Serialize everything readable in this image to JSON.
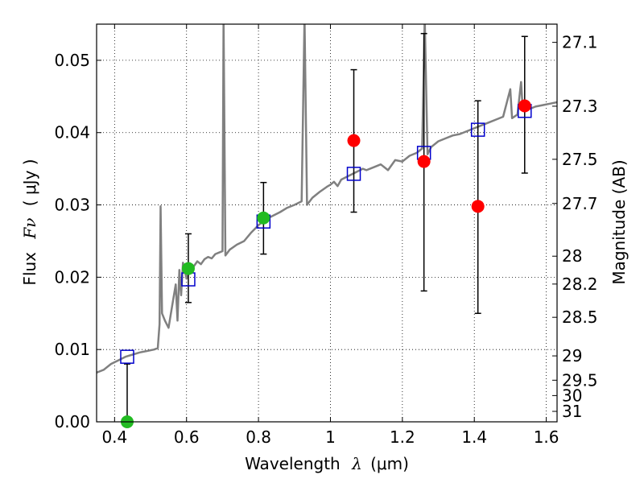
{
  "chart_data": {
    "type": "scatter",
    "xlabel_text": "Wavelength",
    "xlabel_symbol": "λ",
    "xlabel_unit": "(μm)",
    "ylabel_text": "Flux",
    "ylabel_symbol": "Fν",
    "ylabel_unit": "( μJy )",
    "y2label": "Magnitude (AB)",
    "xlim": [
      0.35,
      1.63
    ],
    "ylim": [
      0.0,
      0.055
    ],
    "x_ticks": [
      0.4,
      0.6,
      0.8,
      1.0,
      1.2,
      1.4,
      1.6
    ],
    "x_tick_labels": [
      "0.4",
      "0.6",
      "0.8",
      "1",
      "1.2",
      "1.4",
      "1.6"
    ],
    "y_ticks": [
      0.0,
      0.01,
      0.02,
      0.03,
      0.04,
      0.05
    ],
    "y_tick_labels": [
      "0.00",
      "0.01",
      "0.02",
      "0.03",
      "0.04",
      "0.05"
    ],
    "mag_ticks": [
      "27.1",
      "27.3",
      "27.5",
      "27.7",
      "28",
      "28.2",
      "28.5",
      "29",
      "29.5",
      "30",
      "31"
    ],
    "grid": true,
    "colors": {
      "model": "#808080",
      "detection": "#22bb22",
      "measurement": "#ff0000",
      "model_photometry": "#0000cc",
      "errorbar": "#000000"
    },
    "series": [
      {
        "name": "model_spectrum",
        "type": "line",
        "points": [
          [
            0.35,
            0.0068
          ],
          [
            0.37,
            0.0072
          ],
          [
            0.39,
            0.008
          ],
          [
            0.41,
            0.0085
          ],
          [
            0.43,
            0.009
          ],
          [
            0.45,
            0.0093
          ],
          [
            0.47,
            0.0096
          ],
          [
            0.49,
            0.0098
          ],
          [
            0.51,
            0.01
          ],
          [
            0.52,
            0.0102
          ],
          [
            0.525,
            0.0135
          ],
          [
            0.528,
            0.0298
          ],
          [
            0.532,
            0.015
          ],
          [
            0.54,
            0.014
          ],
          [
            0.55,
            0.013
          ],
          [
            0.56,
            0.016
          ],
          [
            0.57,
            0.019
          ],
          [
            0.575,
            0.014
          ],
          [
            0.58,
            0.021
          ],
          [
            0.585,
            0.0175
          ],
          [
            0.59,
            0.022
          ],
          [
            0.6,
            0.0198
          ],
          [
            0.61,
            0.021
          ],
          [
            0.62,
            0.0215
          ],
          [
            0.63,
            0.0222
          ],
          [
            0.64,
            0.0218
          ],
          [
            0.65,
            0.0225
          ],
          [
            0.66,
            0.0228
          ],
          [
            0.67,
            0.0226
          ],
          [
            0.68,
            0.0232
          ],
          [
            0.69,
            0.0234
          ],
          [
            0.7,
            0.0236
          ],
          [
            0.703,
            0.056
          ],
          [
            0.708,
            0.023
          ],
          [
            0.72,
            0.0238
          ],
          [
            0.74,
            0.0245
          ],
          [
            0.76,
            0.025
          ],
          [
            0.78,
            0.0262
          ],
          [
            0.8,
            0.0272
          ],
          [
            0.82,
            0.028
          ],
          [
            0.84,
            0.0285
          ],
          [
            0.86,
            0.029
          ],
          [
            0.88,
            0.0296
          ],
          [
            0.9,
            0.03
          ],
          [
            0.92,
            0.0305
          ],
          [
            0.928,
            0.056
          ],
          [
            0.935,
            0.03
          ],
          [
            0.95,
            0.031
          ],
          [
            0.97,
            0.0318
          ],
          [
            0.99,
            0.0325
          ],
          [
            1.0,
            0.0328
          ],
          [
            1.01,
            0.0332
          ],
          [
            1.02,
            0.0326
          ],
          [
            1.03,
            0.0335
          ],
          [
            1.05,
            0.034
          ],
          [
            1.07,
            0.0345
          ],
          [
            1.09,
            0.035
          ],
          [
            1.1,
            0.0348
          ],
          [
            1.12,
            0.0352
          ],
          [
            1.14,
            0.0356
          ],
          [
            1.16,
            0.0348
          ],
          [
            1.18,
            0.0362
          ],
          [
            1.2,
            0.036
          ],
          [
            1.22,
            0.0368
          ],
          [
            1.24,
            0.0372
          ],
          [
            1.255,
            0.0378
          ],
          [
            1.262,
            0.056
          ],
          [
            1.27,
            0.037
          ],
          [
            1.28,
            0.038
          ],
          [
            1.3,
            0.0388
          ],
          [
            1.32,
            0.0392
          ],
          [
            1.34,
            0.0396
          ],
          [
            1.36,
            0.0398
          ],
          [
            1.38,
            0.0402
          ],
          [
            1.4,
            0.0406
          ],
          [
            1.42,
            0.041
          ],
          [
            1.44,
            0.0414
          ],
          [
            1.46,
            0.0418
          ],
          [
            1.48,
            0.0422
          ],
          [
            1.5,
            0.046
          ],
          [
            1.505,
            0.042
          ],
          [
            1.52,
            0.0425
          ],
          [
            1.53,
            0.047
          ],
          [
            1.535,
            0.043
          ],
          [
            1.55,
            0.0432
          ],
          [
            1.57,
            0.0436
          ],
          [
            1.59,
            0.0438
          ],
          [
            1.61,
            0.044
          ],
          [
            1.63,
            0.0442
          ]
        ]
      },
      {
        "name": "detections",
        "type": "scatter",
        "marker": "circle",
        "points": [
          [
            0.435,
            0.0
          ],
          [
            0.605,
            0.0212
          ],
          [
            0.814,
            0.0282
          ]
        ],
        "errors": [
          [
            0.0,
            0.008
          ],
          [
            0.0165,
            0.026
          ],
          [
            0.0232,
            0.0331
          ]
        ]
      },
      {
        "name": "measurements",
        "type": "scatter",
        "marker": "circle",
        "points": [
          [
            1.065,
            0.0389
          ],
          [
            1.26,
            0.036
          ],
          [
            1.41,
            0.0298
          ],
          [
            1.54,
            0.0437
          ]
        ],
        "errors": [
          [
            0.029,
            0.0487
          ],
          [
            0.0181,
            0.0537
          ],
          [
            0.015,
            0.0444
          ],
          [
            0.0344,
            0.0533
          ]
        ]
      },
      {
        "name": "model_photometry",
        "type": "scatter",
        "marker": "open-square",
        "points": [
          [
            0.435,
            0.009
          ],
          [
            0.605,
            0.0197
          ],
          [
            0.814,
            0.0277
          ],
          [
            1.065,
            0.0343
          ],
          [
            1.26,
            0.0372
          ],
          [
            1.41,
            0.0404
          ],
          [
            1.54,
            0.043
          ]
        ]
      }
    ]
  }
}
